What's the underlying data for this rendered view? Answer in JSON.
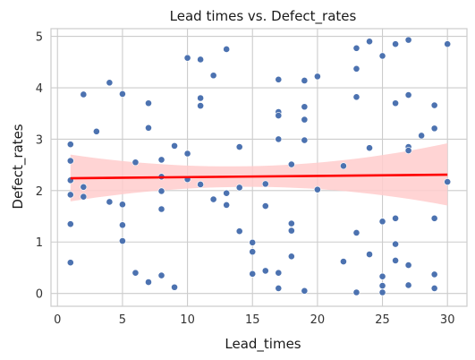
{
  "chart_data": {
    "type": "scatter",
    "title": "Lead times vs. Defect_rates",
    "xlabel": "Lead_times",
    "ylabel": "Defect_rates",
    "xlim": [
      -0.5,
      31.5
    ],
    "ylim": [
      -0.25,
      5.15
    ],
    "xticks": [
      0,
      5,
      10,
      15,
      20,
      25,
      30
    ],
    "yticks": [
      0,
      1,
      2,
      3,
      4,
      5
    ],
    "grid": true,
    "point_color": "#4c72b0",
    "regression": {
      "color": "#ff0000",
      "band_color": "#ffcccc",
      "x_range": [
        1,
        30
      ],
      "line": [
        2.24,
        2.31
      ],
      "band_lower": [
        1.79,
        1.71
      ],
      "band_upper": [
        2.7,
        2.92
      ]
    },
    "points": [
      [
        1,
        2.9
      ],
      [
        1,
        2.58
      ],
      [
        1,
        2.2
      ],
      [
        1,
        1.92
      ],
      [
        1,
        1.35
      ],
      [
        1,
        0.6
      ],
      [
        2,
        3.87
      ],
      [
        2,
        2.07
      ],
      [
        2,
        1.88
      ],
      [
        3,
        3.15
      ],
      [
        4,
        4.1
      ],
      [
        4,
        1.78
      ],
      [
        5,
        3.88
      ],
      [
        5,
        1.73
      ],
      [
        5,
        1.33
      ],
      [
        5,
        1.02
      ],
      [
        6,
        2.55
      ],
      [
        6,
        0.4
      ],
      [
        7,
        3.7
      ],
      [
        7,
        3.22
      ],
      [
        7,
        0.22
      ],
      [
        8,
        2.6
      ],
      [
        8,
        2.27
      ],
      [
        8,
        1.99
      ],
      [
        8,
        1.64
      ],
      [
        8,
        0.35
      ],
      [
        9,
        2.87
      ],
      [
        9,
        0.12
      ],
      [
        10,
        4.58
      ],
      [
        10,
        2.72
      ],
      [
        10,
        2.22
      ],
      [
        11,
        4.55
      ],
      [
        11,
        3.8
      ],
      [
        11,
        3.65
      ],
      [
        11,
        2.12
      ],
      [
        12,
        4.24
      ],
      [
        12,
        1.83
      ],
      [
        13,
        4.75
      ],
      [
        13,
        1.95
      ],
      [
        13,
        1.72
      ],
      [
        14,
        2.85
      ],
      [
        14,
        2.06
      ],
      [
        14,
        1.21
      ],
      [
        15,
        0.99
      ],
      [
        15,
        0.81
      ],
      [
        15,
        0.38
      ],
      [
        16,
        2.13
      ],
      [
        16,
        1.7
      ],
      [
        16,
        0.44
      ],
      [
        17,
        4.16
      ],
      [
        17,
        3.53
      ],
      [
        17,
        3.46
      ],
      [
        17,
        3.0
      ],
      [
        17,
        0.4
      ],
      [
        17,
        0.1
      ],
      [
        18,
        2.51
      ],
      [
        18,
        1.36
      ],
      [
        18,
        1.22
      ],
      [
        18,
        0.72
      ],
      [
        19,
        4.14
      ],
      [
        19,
        3.63
      ],
      [
        19,
        3.38
      ],
      [
        19,
        2.98
      ],
      [
        19,
        0.05
      ],
      [
        20,
        4.22
      ],
      [
        20,
        2.02
      ],
      [
        22,
        2.48
      ],
      [
        22,
        0.62
      ],
      [
        23,
        4.77
      ],
      [
        23,
        4.37
      ],
      [
        23,
        3.82
      ],
      [
        23,
        1.18
      ],
      [
        23,
        0.02
      ],
      [
        24,
        4.9
      ],
      [
        24,
        2.83
      ],
      [
        24,
        0.76
      ],
      [
        25,
        4.62
      ],
      [
        25,
        1.4
      ],
      [
        25,
        0.33
      ],
      [
        25,
        0.15
      ],
      [
        25,
        0.02
      ],
      [
        26,
        4.85
      ],
      [
        26,
        3.7
      ],
      [
        26,
        1.46
      ],
      [
        26,
        0.96
      ],
      [
        26,
        0.64
      ],
      [
        27,
        4.93
      ],
      [
        27,
        3.86
      ],
      [
        27,
        2.85
      ],
      [
        27,
        2.78
      ],
      [
        27,
        0.55
      ],
      [
        27,
        0.16
      ],
      [
        28,
        3.07
      ],
      [
        29,
        3.66
      ],
      [
        29,
        3.21
      ],
      [
        29,
        1.46
      ],
      [
        29,
        0.37
      ],
      [
        29,
        0.1
      ],
      [
        30,
        4.85
      ],
      [
        30,
        2.17
      ]
    ]
  }
}
